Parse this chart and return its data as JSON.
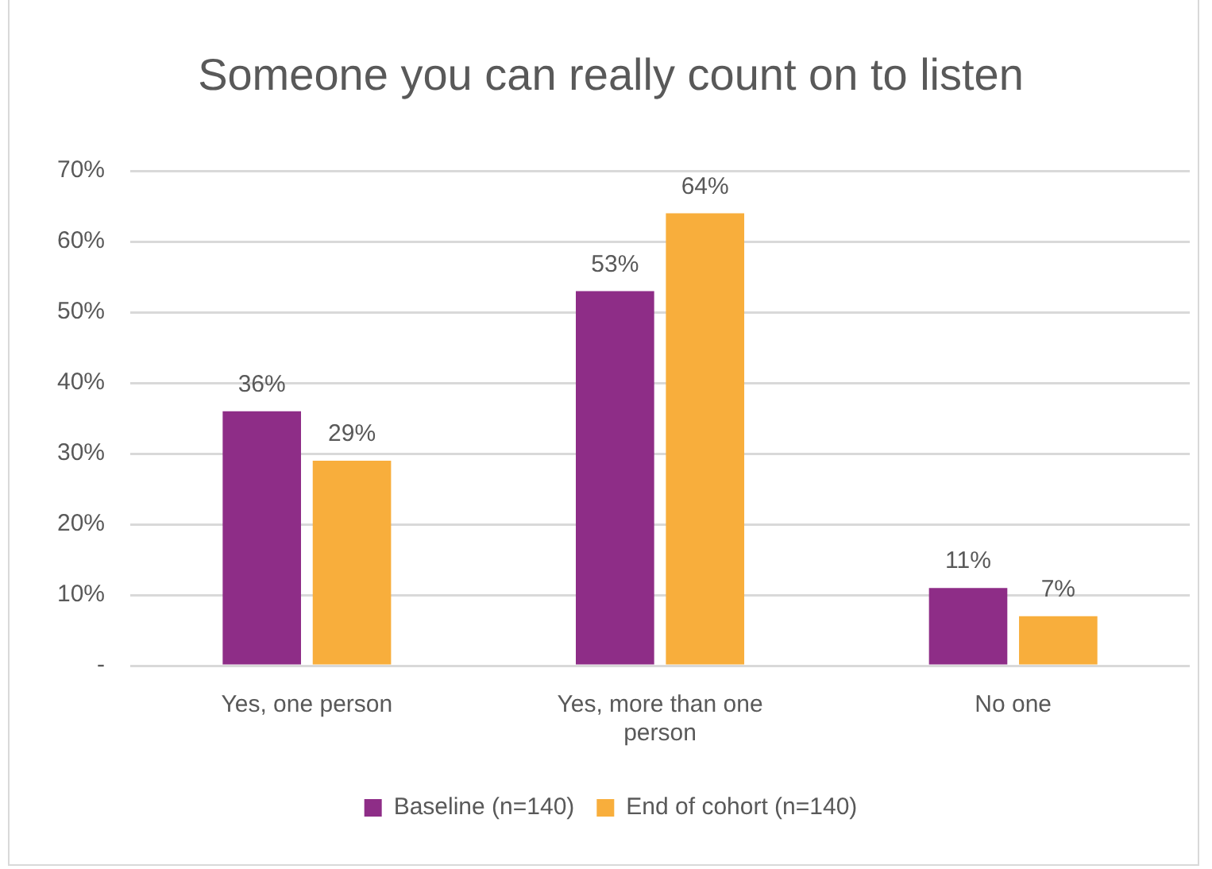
{
  "chart_data": {
    "type": "bar",
    "title": "Someone you can really count on to listen",
    "categories": [
      "Yes, one person",
      "Yes, more than one person",
      "No one"
    ],
    "series": [
      {
        "name": "Baseline (n=140)",
        "color": "#8e2d87",
        "values": [
          36,
          53,
          11
        ],
        "value_labels": [
          "36%",
          "53%",
          "11%"
        ]
      },
      {
        "name": "End of cohort (n=140)",
        "color": "#f8ae3c",
        "values": [
          29,
          64,
          7
        ],
        "value_labels": [
          "29%",
          "64%",
          "7%"
        ]
      }
    ],
    "ylim": [
      0,
      70
    ],
    "yticks": [
      {
        "value": 0,
        "label": "-"
      },
      {
        "value": 10,
        "label": "10%"
      },
      {
        "value": 20,
        "label": "20%"
      },
      {
        "value": 30,
        "label": "30%"
      },
      {
        "value": 40,
        "label": "40%"
      },
      {
        "value": 50,
        "label": "50%"
      },
      {
        "value": 60,
        "label": "60%"
      },
      {
        "value": 70,
        "label": "70%"
      }
    ],
    "grid": "y",
    "legend": "bottom"
  }
}
